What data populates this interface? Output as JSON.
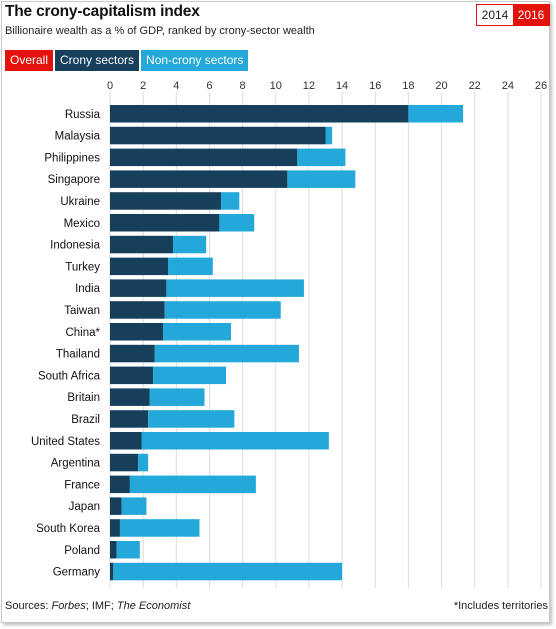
{
  "header": {
    "title": "The crony-capitalism index",
    "subtitle": "Billionaire wealth as a % of GDP, ranked by crony-sector wealth"
  },
  "year_toggle": {
    "options": [
      "2014",
      "2016"
    ],
    "selected": "2016"
  },
  "legend_tabs": {
    "overall": "Overall",
    "crony": "Crony sectors",
    "noncrony": "Non-crony sectors"
  },
  "footer": {
    "sources_prefix": "Sources: ",
    "sources_forbes": "Forbes",
    "sources_imf": "; IMF; ",
    "sources_economist": "The Economist",
    "footnote": "*Includes territories"
  },
  "colors": {
    "crony": "#163f5c",
    "noncrony": "#23a8d9",
    "accent": "#e3120b",
    "grid": "#dcdcdc"
  },
  "chart_data": {
    "type": "bar",
    "orientation": "horizontal",
    "stacked": true,
    "xlim": [
      0,
      26
    ],
    "x_ticks": [
      0,
      2,
      4,
      6,
      8,
      10,
      12,
      14,
      16,
      18,
      20,
      22,
      24,
      26
    ],
    "grid": true,
    "categories": [
      "Russia",
      "Malaysia",
      "Philippines",
      "Singapore",
      "Ukraine",
      "Mexico",
      "Indonesia",
      "Turkey",
      "India",
      "Taiwan",
      "China*",
      "Thailand",
      "South Africa",
      "Britain",
      "Brazil",
      "United States",
      "Argentina",
      "France",
      "Japan",
      "South Korea",
      "Poland",
      "Germany"
    ],
    "series": [
      {
        "name": "Crony sectors",
        "values": [
          18.0,
          13.0,
          11.3,
          10.7,
          6.7,
          6.6,
          3.8,
          3.5,
          3.4,
          3.3,
          3.2,
          2.7,
          2.6,
          2.4,
          2.3,
          1.9,
          1.7,
          1.2,
          0.7,
          0.6,
          0.4,
          0.2
        ]
      },
      {
        "name": "Non-crony sectors",
        "values": [
          3.3,
          0.4,
          2.9,
          4.1,
          1.1,
          2.1,
          2.0,
          2.7,
          8.3,
          7.0,
          4.1,
          8.7,
          4.4,
          3.3,
          5.2,
          11.3,
          0.6,
          7.6,
          1.5,
          4.8,
          1.4,
          13.8
        ]
      }
    ]
  }
}
